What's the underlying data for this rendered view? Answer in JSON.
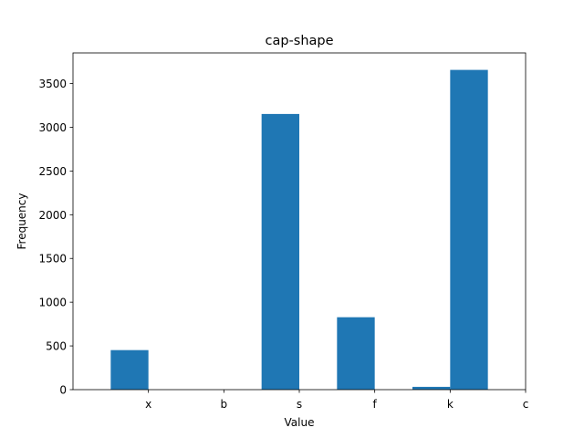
{
  "chart_data": {
    "type": "bar",
    "title": "cap-shape",
    "xlabel": "Value",
    "ylabel": "Frequency",
    "x_ticks": [
      "x",
      "b",
      "s",
      "f",
      "k",
      "c"
    ],
    "ylim": [
      0,
      3850
    ],
    "y_ticks": [
      0,
      500,
      1000,
      1500,
      2000,
      2500,
      3000,
      3500
    ],
    "bar_color": "#1f77b4",
    "grid": false,
    "bins": [
      {
        "start": -0.5,
        "end": 0.0,
        "value": 452
      },
      {
        "start": 0.0,
        "end": 0.5,
        "value": 0
      },
      {
        "start": 0.5,
        "end": 1.0,
        "value": 0
      },
      {
        "start": 1.0,
        "end": 1.5,
        "value": 0
      },
      {
        "start": 1.5,
        "end": 2.0,
        "value": 3152
      },
      {
        "start": 2.0,
        "end": 2.5,
        "value": 0
      },
      {
        "start": 2.5,
        "end": 3.0,
        "value": 828
      },
      {
        "start": 3.0,
        "end": 3.5,
        "value": 0
      },
      {
        "start": 3.5,
        "end": 4.0,
        "value": 32
      },
      {
        "start": 4.0,
        "end": 4.5,
        "value": 3656
      }
    ],
    "xlim": [
      -1.0,
      5.0
    ]
  }
}
